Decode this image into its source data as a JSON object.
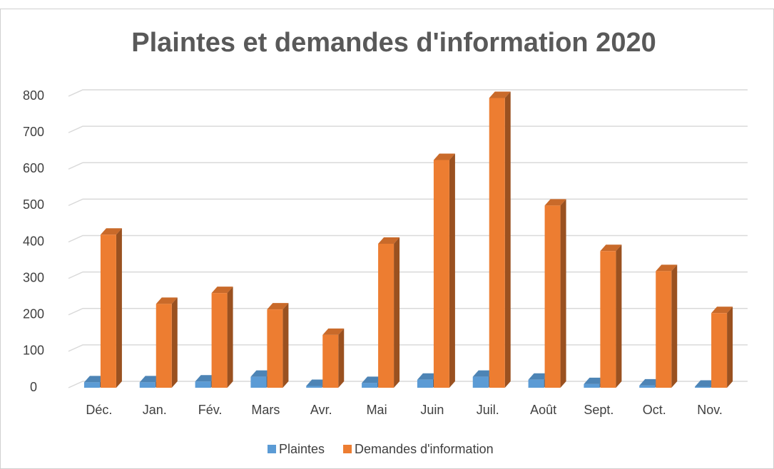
{
  "chart_data": {
    "type": "bar3d",
    "title": "Plaintes et demandes d'information 2020",
    "categories": [
      "Déc.",
      "Jan.",
      "Fév.",
      "Mars",
      "Avr.",
      "Mai",
      "Juin",
      "Juil.",
      "Août",
      "Sept.",
      "Oct.",
      "Nov."
    ],
    "series": [
      {
        "name": "Plaintes",
        "color": "#5b9bd5",
        "values": [
          15,
          15,
          17,
          30,
          5,
          13,
          22,
          30,
          22,
          10,
          6,
          3
        ]
      },
      {
        "name": "Demandes d'information",
        "color": "#ed7d31",
        "values": [
          420,
          230,
          260,
          215,
          145,
          395,
          625,
          795,
          500,
          375,
          320,
          205
        ]
      }
    ],
    "ylim": [
      0,
      800
    ],
    "yticks": [
      0,
      100,
      200,
      300,
      400,
      500,
      600,
      700,
      800
    ],
    "grid": true,
    "legend": "bottom"
  }
}
